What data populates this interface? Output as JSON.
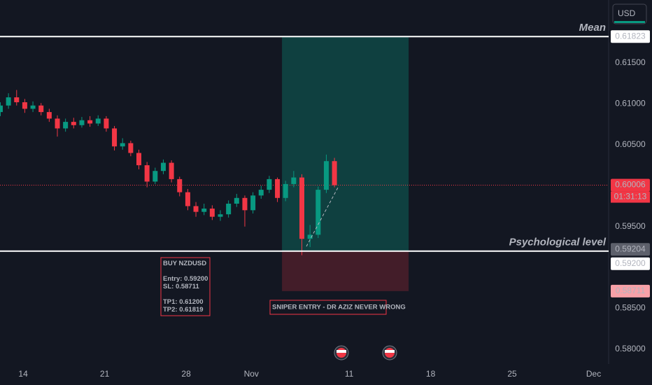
{
  "chart_data": {
    "type": "candlestick",
    "currency": "USD",
    "x": [
      -1.4,
      -0.9,
      -0.4,
      0.1,
      0.6,
      1.1,
      1.6,
      2.1,
      2.6,
      3.1,
      3.6,
      4.1,
      4.6,
      5.1,
      5.6,
      6.1,
      6.6,
      7.1,
      7.6,
      8.1,
      8.6,
      9.1,
      9.6,
      10.1,
      10.6,
      11.1,
      11.6,
      12.1,
      12.6,
      13.1,
      13.6,
      14.1,
      14.6,
      15.1,
      15.6,
      16.1,
      16.6,
      17.1,
      17.6,
      18.1,
      18.6,
      19.1
    ],
    "open": [
      0.609,
      0.6098,
      0.6108,
      0.6102,
      0.6094,
      0.6098,
      0.609,
      0.6082,
      0.607,
      0.6078,
      0.6074,
      0.608,
      0.6076,
      0.6082,
      0.607,
      0.6048,
      0.6052,
      0.604,
      0.6025,
      0.6005,
      0.6018,
      0.6028,
      0.6008,
      0.5992,
      0.5975,
      0.5968,
      0.5972,
      0.5962,
      0.5965,
      0.5978,
      0.5985,
      0.597,
      0.5988,
      0.5995,
      0.6008,
      0.5985,
      0.6002,
      0.601,
      0.5935,
      0.594,
      0.5995,
      0.603
    ],
    "high": [
      0.6102,
      0.6113,
      0.6117,
      0.6106,
      0.6103,
      0.6101,
      0.6094,
      0.6086,
      0.6082,
      0.6083,
      0.6084,
      0.6085,
      0.6086,
      0.6085,
      0.6073,
      0.6058,
      0.6055,
      0.6044,
      0.6029,
      0.6022,
      0.6032,
      0.6031,
      0.6011,
      0.5996,
      0.598,
      0.5978,
      0.5976,
      0.597,
      0.5982,
      0.599,
      0.5988,
      0.5992,
      0.6,
      0.6012,
      0.601,
      0.6006,
      0.6018,
      0.6014,
      0.5952,
      0.5999,
      0.6038,
      0.6034
    ],
    "low": [
      0.6085,
      0.6094,
      0.6098,
      0.6089,
      0.609,
      0.6086,
      0.6078,
      0.606,
      0.6066,
      0.607,
      0.6071,
      0.6072,
      0.6073,
      0.6066,
      0.6043,
      0.6044,
      0.6036,
      0.602,
      0.5998,
      0.6002,
      0.6014,
      0.6004,
      0.5987,
      0.597,
      0.5962,
      0.5964,
      0.5958,
      0.5957,
      0.5961,
      0.5974,
      0.595,
      0.5966,
      0.5984,
      0.5991,
      0.598,
      0.5981,
      0.5998,
      0.5915,
      0.5925,
      0.5936,
      0.5991,
      0.5998
    ],
    "close": [
      0.6098,
      0.6108,
      0.6102,
      0.6094,
      0.6098,
      0.609,
      0.6082,
      0.607,
      0.6078,
      0.6074,
      0.608,
      0.6076,
      0.6082,
      0.607,
      0.6048,
      0.6052,
      0.604,
      0.6025,
      0.6005,
      0.6018,
      0.6028,
      0.6008,
      0.5992,
      0.5975,
      0.5968,
      0.5972,
      0.5962,
      0.5965,
      0.5978,
      0.5985,
      0.597,
      0.5988,
      0.5995,
      0.6008,
      0.5985,
      0.6002,
      0.601,
      0.5935,
      0.594,
      0.5995,
      0.603,
      0.60006
    ],
    "up_color": "#089981",
    "down_color": "#f23645",
    "xlim": [
      -1.42,
      35.92
    ],
    "xticks": [
      {
        "value": 0,
        "label": "14"
      },
      {
        "value": 5,
        "label": "21"
      },
      {
        "value": 10,
        "label": "28"
      },
      {
        "value": 14,
        "label": "Nov"
      },
      {
        "value": 20,
        "label": "11"
      },
      {
        "value": 25,
        "label": "18"
      },
      {
        "value": 30,
        "label": "25"
      },
      {
        "value": 35,
        "label": "Dec"
      }
    ],
    "ylim": [
      0.5782,
      0.6227
    ],
    "yticks": [
      {
        "value": 0.615,
        "label": "0.61500"
      },
      {
        "value": 0.61,
        "label": "0.61000"
      },
      {
        "value": 0.605,
        "label": "0.60500"
      },
      {
        "value": 0.595,
        "label": "0.59500"
      },
      {
        "value": 0.585,
        "label": "0.58500"
      },
      {
        "value": 0.58,
        "label": "0.58000"
      }
    ],
    "grid": false,
    "levels": [
      {
        "name": "Mean",
        "value": 0.61823,
        "label": "0.61823"
      },
      {
        "name": "Psychological level",
        "value": 0.592,
        "label": "0.59200"
      }
    ],
    "last_price": {
      "value": 0.60006,
      "label": "0.60006",
      "countdown": "01:31:13"
    },
    "position": {
      "x_start": 15.88,
      "x_end": 23.65,
      "target": 0.61823,
      "entry": {
        "value": 0.59204,
        "label": "0.59204"
      },
      "stop": {
        "value": 0.58711,
        "label": "0.58711"
      }
    },
    "notes": [
      {
        "groups": [
          [
            "BUY NZDUSD"
          ],
          [
            "Entry:  0.59200",
            "SL:   0.58711"
          ],
          [
            "TP1: 0.61200",
            "TP2: 0.61819"
          ]
        ]
      },
      {
        "groups": [
          [
            "SNIPER ENTRY - DR AZIZ NEVER WRONG"
          ]
        ]
      }
    ]
  }
}
